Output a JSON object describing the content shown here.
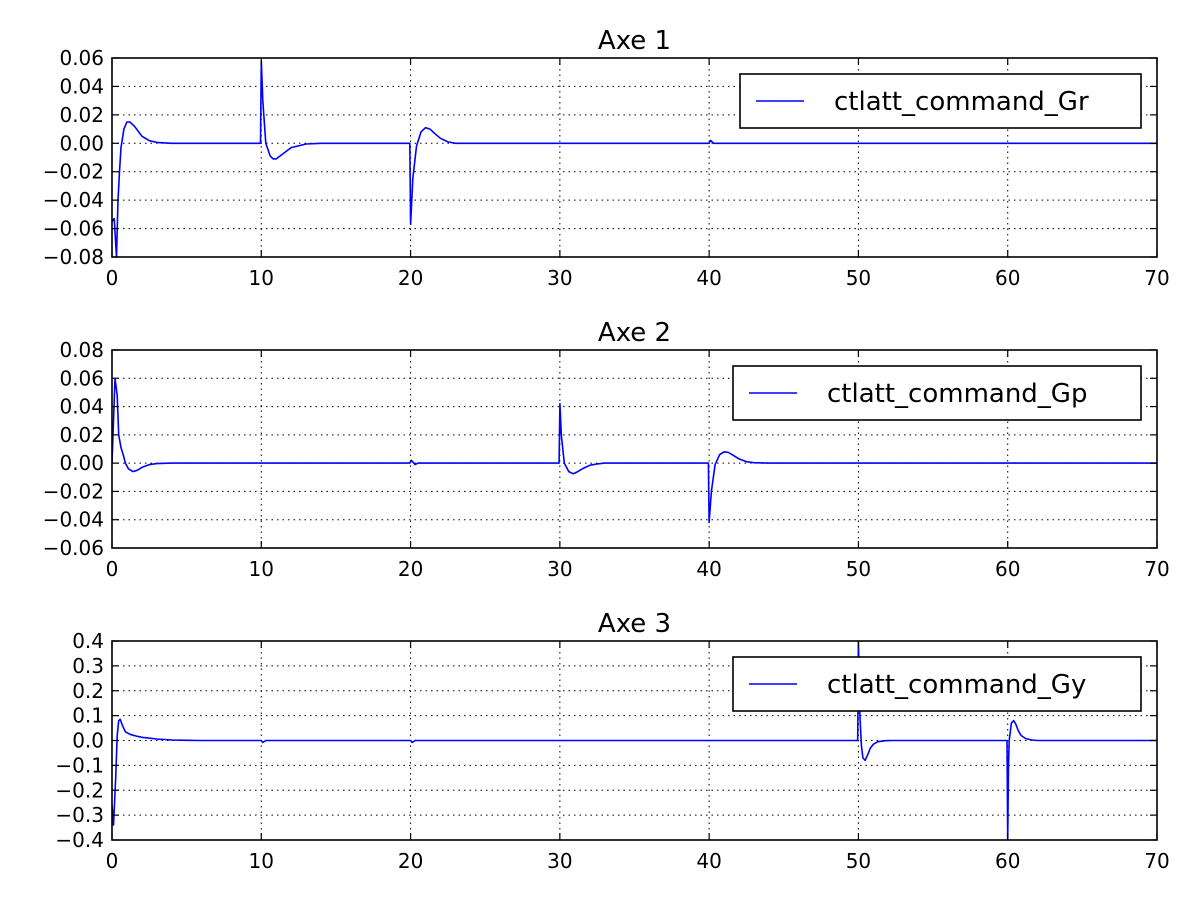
{
  "chart_data": [
    {
      "type": "line",
      "title": "Axe 1",
      "xlabel": "",
      "ylabel": "",
      "xlim": [
        0,
        70
      ],
      "ylim": [
        -0.08,
        0.06
      ],
      "xticks": [
        0,
        10,
        20,
        30,
        40,
        50,
        60,
        70
      ],
      "xtick_labels": [
        "0",
        "10",
        "20",
        "30",
        "40",
        "50",
        "60",
        "70"
      ],
      "yticks": [
        -0.08,
        -0.06,
        -0.04,
        -0.02,
        0.0,
        0.02,
        0.04,
        0.06
      ],
      "ytick_labels": [
        "−0.08",
        "−0.06",
        "−0.04",
        "−0.02",
        "0.00",
        "0.02",
        "0.04",
        "0.06"
      ],
      "grid": true,
      "legend_position": "top-right",
      "series": [
        {
          "name": "ctlatt_command_Gr",
          "color": "#0000ff",
          "x": [
            0,
            0.15,
            0.3,
            0.4,
            0.5,
            0.6,
            0.8,
            1.0,
            1.2,
            1.5,
            2.0,
            2.5,
            3.0,
            4.0,
            5.0,
            9.95,
            10.0,
            10.1,
            10.3,
            10.6,
            10.8,
            11.0,
            11.5,
            12.0,
            13.0,
            14.0,
            19.95,
            20.0,
            20.15,
            20.4,
            20.7,
            21.0,
            21.3,
            21.6,
            22.0,
            22.5,
            23.0,
            40.0,
            40.1,
            40.3,
            70
          ],
          "y": [
            -0.055,
            -0.053,
            -0.08,
            -0.04,
            -0.02,
            -0.003,
            0.01,
            0.015,
            0.015,
            0.012,
            0.005,
            0.0018,
            0.0006,
            0.0,
            0.0,
            0.0,
            0.058,
            0.03,
            0.0,
            -0.009,
            -0.011,
            -0.011,
            -0.007,
            -0.003,
            -0.0005,
            0.0,
            0.0,
            -0.057,
            -0.025,
            -0.002,
            0.008,
            0.011,
            0.01,
            0.007,
            0.0035,
            0.001,
            0.0,
            0.0,
            0.002,
            0.0,
            0.0
          ]
        }
      ]
    },
    {
      "type": "line",
      "title": "Axe 2",
      "xlabel": "",
      "ylabel": "",
      "xlim": [
        0,
        70
      ],
      "ylim": [
        -0.06,
        0.08
      ],
      "xticks": [
        0,
        10,
        20,
        30,
        40,
        50,
        60,
        70
      ],
      "xtick_labels": [
        "0",
        "10",
        "20",
        "30",
        "40",
        "50",
        "60",
        "70"
      ],
      "yticks": [
        -0.06,
        -0.04,
        -0.02,
        0.0,
        0.02,
        0.04,
        0.06,
        0.08
      ],
      "ytick_labels": [
        "−0.06",
        "−0.04",
        "−0.02",
        "0.00",
        "0.02",
        "0.04",
        "0.06",
        "0.08"
      ],
      "grid": true,
      "legend_position": "top-right",
      "series": [
        {
          "name": "ctlatt_command_Gp",
          "color": "#0000ff",
          "x": [
            0,
            0.2,
            0.35,
            0.45,
            0.6,
            0.75,
            0.9,
            1.1,
            1.4,
            1.7,
            2.0,
            2.5,
            3.0,
            4.0,
            19.95,
            20.05,
            20.3,
            20.5,
            29.95,
            30.0,
            30.1,
            30.3,
            30.6,
            30.9,
            31.2,
            31.6,
            32.0,
            32.5,
            33.0,
            34.0,
            39.95,
            40.0,
            40.15,
            40.4,
            40.7,
            41.0,
            41.3,
            41.7,
            42.0,
            42.5,
            43.0,
            44.0,
            70
          ],
          "y": [
            0.0,
            0.06,
            0.048,
            0.02,
            0.011,
            0.006,
            0.0,
            -0.004,
            -0.006,
            -0.005,
            -0.003,
            -0.001,
            -0.0003,
            0.0,
            0.0,
            0.002,
            -0.001,
            0.0,
            0.0,
            0.042,
            0.02,
            0.0,
            -0.006,
            -0.0075,
            -0.006,
            -0.0035,
            -0.0015,
            -0.0005,
            0.0,
            0.0,
            0.0,
            -0.042,
            -0.02,
            -0.001,
            0.006,
            0.008,
            0.0075,
            0.005,
            0.003,
            0.001,
            0.0003,
            0.0,
            0.0
          ]
        }
      ]
    },
    {
      "type": "line",
      "title": "Axe 3",
      "xlabel": "",
      "ylabel": "",
      "xlim": [
        0,
        70
      ],
      "ylim": [
        -0.4,
        0.4
      ],
      "xticks": [
        0,
        10,
        20,
        30,
        40,
        50,
        60,
        70
      ],
      "xtick_labels": [
        "0",
        "10",
        "20",
        "30",
        "40",
        "50",
        "60",
        "70"
      ],
      "yticks": [
        -0.4,
        -0.3,
        -0.2,
        -0.1,
        0.0,
        0.1,
        0.2,
        0.3,
        0.4
      ],
      "ytick_labels": [
        "−0.4",
        "−0.3",
        "−0.2",
        "−0.1",
        "0.0",
        "0.1",
        "0.2",
        "0.3",
        "0.4"
      ],
      "grid": true,
      "legend_position": "top-right",
      "series": [
        {
          "name": "ctlatt_command_Gy",
          "color": "#0000ff",
          "x": [
            0,
            0.1,
            0.25,
            0.35,
            0.45,
            0.55,
            0.7,
            0.9,
            1.2,
            1.6,
            2.0,
            3.0,
            4.0,
            5.0,
            6.0,
            10.0,
            10.1,
            10.3,
            20.0,
            20.1,
            20.3,
            49.95,
            50.0,
            50.1,
            50.2,
            50.3,
            50.45,
            50.6,
            50.8,
            51.0,
            51.3,
            51.8,
            52.3,
            59.95,
            60.0,
            60.05,
            60.1,
            60.25,
            60.4,
            60.55,
            60.7,
            60.9,
            61.2,
            61.6,
            62.0,
            70
          ],
          "y": [
            -0.26,
            -0.34,
            -0.15,
            0.02,
            0.08,
            0.085,
            0.06,
            0.035,
            0.025,
            0.018,
            0.013,
            0.006,
            0.002,
            0.001,
            0.0,
            0.0,
            -0.008,
            0.0,
            0.0,
            -0.008,
            0.0,
            0.0,
            0.4,
            0.1,
            -0.02,
            -0.07,
            -0.08,
            -0.06,
            -0.03,
            -0.015,
            -0.005,
            -0.001,
            0.0,
            0.0,
            -0.4,
            -0.1,
            0.0,
            0.07,
            0.08,
            0.065,
            0.04,
            0.02,
            0.008,
            0.002,
            0.0,
            0.0
          ]
        }
      ]
    }
  ]
}
